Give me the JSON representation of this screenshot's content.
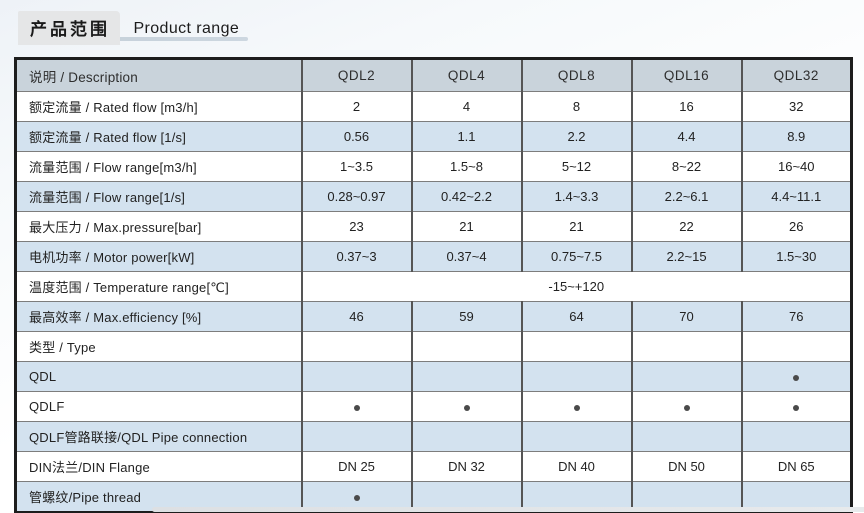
{
  "header": {
    "title_cn": "产品范围",
    "title_en": "Product range"
  },
  "table": {
    "columns": [
      "说明 / Description",
      "QDL2",
      "QDL4",
      "QDL8",
      "QDL16",
      "QDL32"
    ],
    "rows": [
      {
        "label": "额定流量 / Rated flow [m3/h]",
        "cells": [
          "2",
          "4",
          "8",
          "16",
          "32"
        ]
      },
      {
        "label": "额定流量 / Rated flow [1/s]",
        "cells": [
          "0.56",
          "1.1",
          "2.2",
          "4.4",
          "8.9"
        ]
      },
      {
        "label": "流量范围 / Flow range[m3/h]",
        "cells": [
          "1~3.5",
          "1.5~8",
          "5~12",
          "8~22",
          "16~40"
        ]
      },
      {
        "label": "流量范围 / Flow range[1/s]",
        "cells": [
          "0.28~0.97",
          "0.42~2.2",
          "1.4~3.3",
          "2.2~6.1",
          "4.4~11.1"
        ]
      },
      {
        "label": "最大压力 / Max.pressure[bar]",
        "cells": [
          "23",
          "21",
          "21",
          "22",
          "26"
        ]
      },
      {
        "label": "电机功率 / Motor power[kW]",
        "cells": [
          "0.37~3",
          "0.37~4",
          "0.75~7.5",
          "2.2~15",
          "1.5~30"
        ]
      },
      {
        "label": "温度范围 / Temperature range[℃]",
        "span": "-15~+120"
      },
      {
        "label": "最高效率 / Max.efficiency [%]",
        "cells": [
          "46",
          "59",
          "64",
          "70",
          "76"
        ]
      },
      {
        "label": "类型 / Type",
        "cells": [
          "",
          "",
          "",
          "",
          ""
        ]
      },
      {
        "label": "QDL",
        "cells": [
          "",
          "",
          "",
          "",
          "dot"
        ]
      },
      {
        "label": "QDLF",
        "cells": [
          "dot",
          "dot",
          "dot",
          "dot",
          "dot"
        ]
      },
      {
        "label": "QDLF管路联接/QDL Pipe connection",
        "cells": [
          "",
          "",
          "",
          "",
          ""
        ]
      },
      {
        "label": "DIN法兰/DIN Flange",
        "cells": [
          "DN 25",
          "DN 32",
          "DN 40",
          "DN 50",
          "DN 65"
        ]
      },
      {
        "label": "管螺纹/Pipe thread",
        "cells": [
          "dot",
          "",
          "",
          "",
          ""
        ]
      }
    ]
  },
  "colors": {
    "header_bg": "#c9d3db",
    "row_shade_bg": "#d3e2ef",
    "row_plain_bg": "#ffffff",
    "dot": "#4a4a4a"
  }
}
